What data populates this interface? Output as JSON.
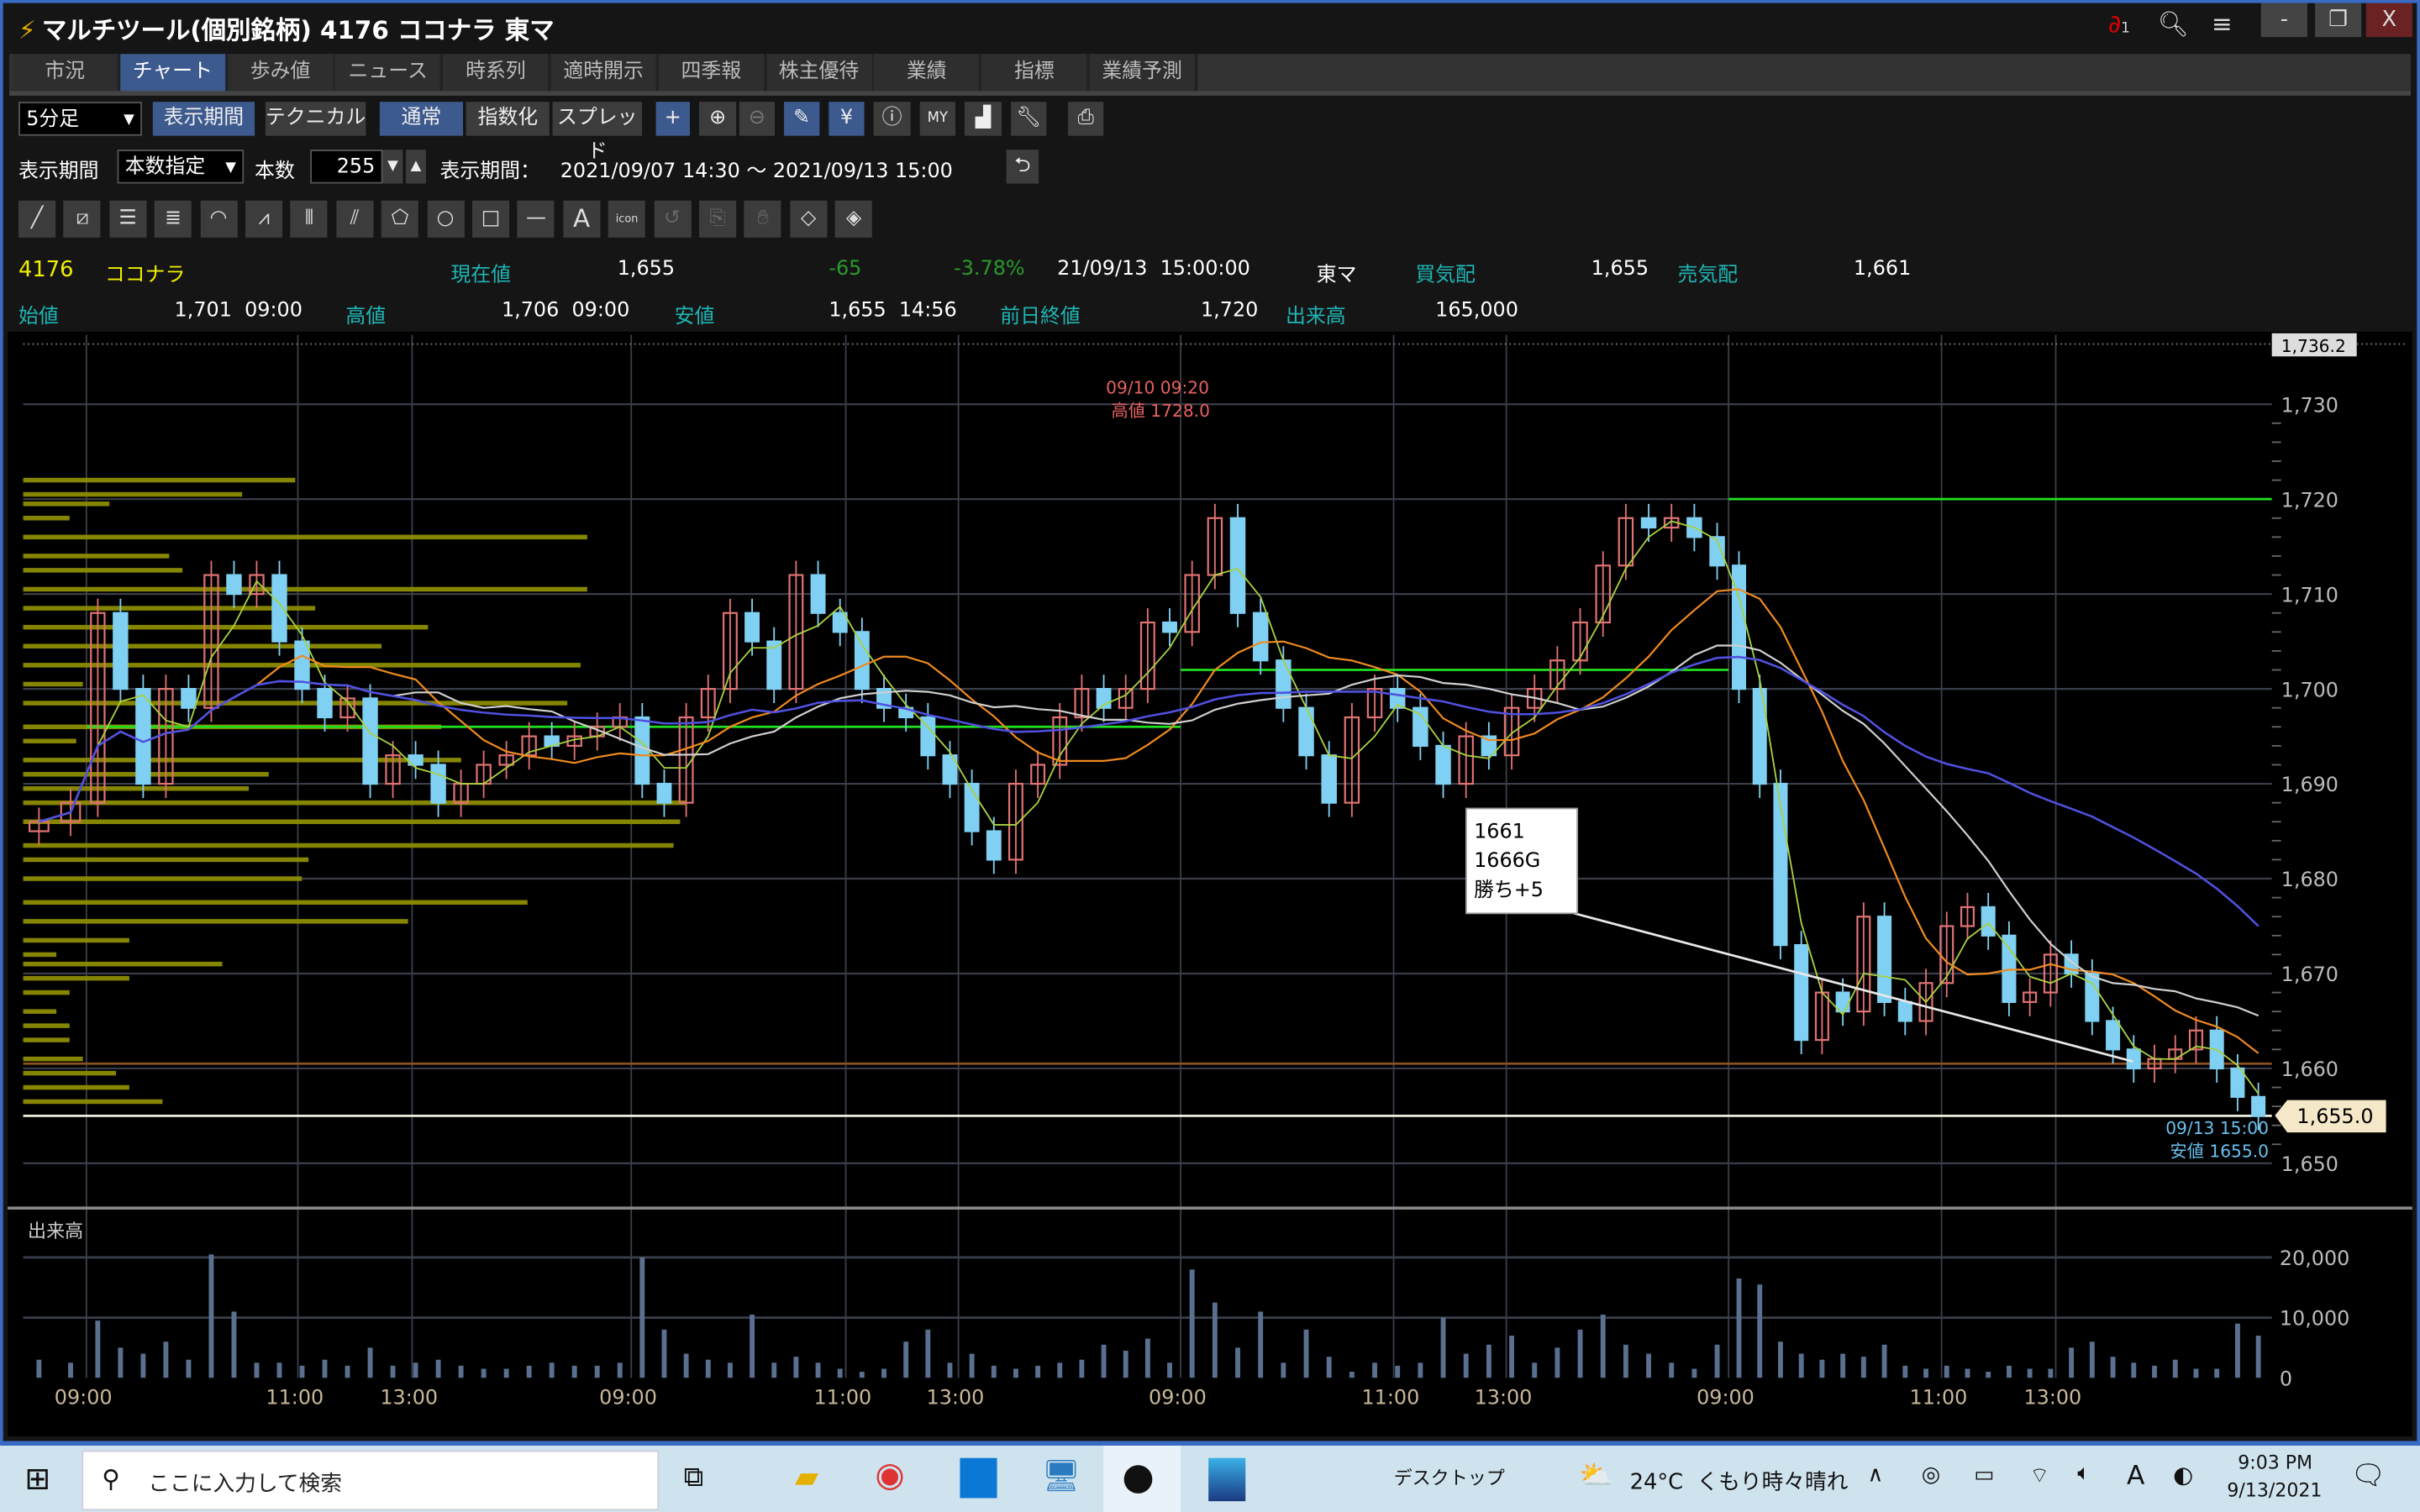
{
  "window": {
    "title": "マルチツール(個別銘柄) 4176 ココナラ 東マ",
    "link_badge": "1",
    "controls": {
      "minimize": "-",
      "restore": "❐",
      "close": "X"
    }
  },
  "tabs": [
    {
      "label": "市況"
    },
    {
      "label": "チャート",
      "active": true
    },
    {
      "label": "歩み値"
    },
    {
      "label": "ニュース"
    },
    {
      "label": "時系列"
    },
    {
      "label": "適時開示"
    },
    {
      "label": "四季報"
    },
    {
      "label": "株主優待"
    },
    {
      "label": "業績"
    },
    {
      "label": "指標"
    },
    {
      "label": "業績予測"
    }
  ],
  "toolbar": {
    "interval": "5分足",
    "period_button": "表示期間",
    "technical_button": "テクニカル",
    "normal_button": "通常",
    "index_button": "指数化",
    "spread_button": "スプレッド",
    "icons": [
      "crosshair-icon",
      "zoom-in-icon",
      "zoom-out-icon",
      "pencil-icon",
      "yen-icon",
      "info-icon",
      "my-chart-icon",
      "area-chart-icon",
      "wrench-icon",
      "print-icon"
    ]
  },
  "period": {
    "label": "表示期間",
    "mode": "本数指定",
    "count_label": "本数",
    "count": "255",
    "range_label": "表示期間：",
    "range": "2021/09/07 14:30 ～ 2021/09/13 15:00"
  },
  "drawing_tools": [
    "line",
    "parallel",
    "horizontal-lines",
    "multi-lines",
    "arc",
    "fan",
    "vertical-lines",
    "pitchfork",
    "pentagon",
    "circle",
    "rectangle",
    "horizontal-line",
    "text",
    "stamp",
    "redo",
    "copy",
    "hand",
    "eraser",
    "eraser-all"
  ],
  "stamp_label": "icon",
  "text_tool_label": "A",
  "quote": {
    "code": "4176",
    "name": "ココナラ",
    "current_label": "現在値",
    "current": "1,655",
    "change": "-65",
    "change_pct": "-3.78%",
    "datetime": "21/09/13  15:00:00",
    "market": "東マ",
    "bid_label": "買気配",
    "bid": "1,655",
    "ask_label": "売気配",
    "ask": "1,661",
    "open_label": "始値",
    "open": "1,701  09:00",
    "high_label": "高値",
    "high": "1,706  09:00",
    "low_label": "安値",
    "low": "1,655  14:56",
    "prev_close_label": "前日終値",
    "prev_close": "1,720",
    "volume_label": "出来高",
    "volume": "165,000"
  },
  "colors": {
    "up": "#e07272",
    "down": "#7fd0f2",
    "ma_short": "#a8d040",
    "ma_mid": "#f08a20",
    "ma_long": "#5050e0",
    "ma_white": "#d0d0d0",
    "profile": "#8c8c00",
    "accent": "#3d5a8e"
  },
  "chart_data": {
    "type": "candlestick",
    "ylim": [
      1648,
      1736.2
    ],
    "y_ticks": [
      "1,730",
      "1,720",
      "1,710",
      "1,700",
      "1,690",
      "1,680",
      "1,670",
      "1,660",
      "1,650"
    ],
    "y_tick_values": [
      1730,
      1720,
      1710,
      1700,
      1690,
      1680,
      1670,
      1660,
      1650
    ],
    "top_label": "1,736.2",
    "last_price_label": "1,655.0",
    "x_ticks": [
      "09:00",
      "11:00",
      "13:00",
      "09:00",
      "11:00",
      "13:00",
      "09:00",
      "11:00",
      "13:00",
      "09:00",
      "11:00",
      "13:00"
    ],
    "grid": true,
    "sessions": [
      {
        "close": [
          1686,
          1688
        ],
        "volume": [
          3000,
          2500
        ]
      },
      {
        "close": [
          1708,
          1700,
          1690,
          1700,
          1698,
          1712,
          1710,
          1712,
          1705,
          1700,
          1697,
          1699,
          1690,
          1693,
          1692,
          1688,
          1690,
          1692,
          1693,
          1695,
          1694,
          1695,
          1696,
          1697
        ],
        "volume": [
          9500,
          5000,
          4000,
          6000,
          3000,
          20500,
          11000,
          2500,
          2500,
          2000,
          3000,
          2000,
          5000,
          2000,
          2500,
          3000,
          2000,
          1500,
          1500,
          2000,
          2500,
          2000,
          2000,
          2500
        ]
      },
      {
        "close": [
          1690,
          1688,
          1697,
          1700,
          1708,
          1705,
          1700,
          1712,
          1708,
          1706,
          1700,
          1698,
          1697,
          1693,
          1690,
          1685,
          1682,
          1690,
          1692,
          1697,
          1700,
          1698,
          1700,
          1707,
          1706
        ],
        "volume": [
          20000,
          8000,
          4000,
          3000,
          2500,
          10500,
          2500,
          3500,
          2500,
          1500,
          1000,
          1500,
          6000,
          8000,
          2500,
          4000,
          2000,
          1500,
          2000,
          2500,
          3000,
          5500,
          4500,
          6500,
          2500
        ]
      },
      {
        "close": [
          1712,
          1718,
          1708,
          1703,
          1698,
          1693,
          1688,
          1697,
          1700,
          1698,
          1694,
          1690,
          1695,
          1693,
          1698,
          1700,
          1703,
          1707,
          1713,
          1718,
          1717,
          1718,
          1716,
          1713
        ],
        "volume": [
          18000,
          12500,
          5000,
          11000,
          2500,
          8000,
          3500,
          1000,
          2500,
          2000,
          2500,
          10000,
          4000,
          5500,
          7000,
          2500,
          5000,
          8000,
          10500,
          5500,
          4000,
          2500,
          1500,
          5500
        ]
      },
      {
        "close": [
          1700,
          1690,
          1673,
          1663,
          1668,
          1666,
          1676,
          1667,
          1665,
          1669,
          1675,
          1677,
          1674,
          1667,
          1668,
          1672,
          1670,
          1665,
          1662,
          1660,
          1661,
          1662,
          1664,
          1660,
          1657,
          1655
        ],
        "volume": [
          16500,
          15500,
          6000,
          4000,
          3000,
          4000,
          3500,
          5500,
          2000,
          1500,
          2000,
          1500,
          1000,
          2000,
          1500,
          1500,
          5000,
          6000,
          3500,
          2500,
          2000,
          3000,
          1500,
          1500,
          9000,
          7000
        ]
      }
    ],
    "horizontal_lines": [
      {
        "price": 1696,
        "session_from": 1,
        "session_to": 2,
        "color": "#20e020"
      },
      {
        "price": 1702,
        "session_from": 3,
        "session_to": 3,
        "color": "#20e020"
      },
      {
        "price": 1720,
        "session_from": 4,
        "session_to": 4,
        "color": "#20e020"
      },
      {
        "price": 1660.5,
        "color": "#8a5020"
      },
      {
        "price": 1655,
        "color": "#f0f0e0"
      }
    ],
    "trendline": {
      "from_price": 1680.5,
      "to_price": 1661
    },
    "volume_profile": [
      {
        "price": 1722,
        "vol": 41
      },
      {
        "price": 1720.5,
        "vol": 33
      },
      {
        "price": 1719.5,
        "vol": 13
      },
      {
        "price": 1718,
        "vol": 7
      },
      {
        "price": 1716,
        "vol": 85
      },
      {
        "price": 1714,
        "vol": 22
      },
      {
        "price": 1712.5,
        "vol": 24
      },
      {
        "price": 1710.5,
        "vol": 85
      },
      {
        "price": 1708.5,
        "vol": 44
      },
      {
        "price": 1706.5,
        "vol": 61
      },
      {
        "price": 1704.5,
        "vol": 54
      },
      {
        "price": 1702.5,
        "vol": 84
      },
      {
        "price": 1700.5,
        "vol": 9
      },
      {
        "price": 1698.5,
        "vol": 82
      },
      {
        "price": 1696,
        "vol": 63
      },
      {
        "price": 1694.5,
        "vol": 8
      },
      {
        "price": 1692.5,
        "vol": 66
      },
      {
        "price": 1691,
        "vol": 37
      },
      {
        "price": 1689.5,
        "vol": 34
      },
      {
        "price": 1688,
        "vol": 100
      },
      {
        "price": 1686,
        "vol": 99
      },
      {
        "price": 1683.5,
        "vol": 98
      },
      {
        "price": 1682,
        "vol": 43
      },
      {
        "price": 1680,
        "vol": 42
      },
      {
        "price": 1677.5,
        "vol": 76
      },
      {
        "price": 1675.5,
        "vol": 58
      },
      {
        "price": 1673.5,
        "vol": 16
      },
      {
        "price": 1672,
        "vol": 5
      },
      {
        "price": 1671,
        "vol": 30
      },
      {
        "price": 1669.5,
        "vol": 16
      },
      {
        "price": 1668,
        "vol": 7
      },
      {
        "price": 1666,
        "vol": 5
      },
      {
        "price": 1664.5,
        "vol": 7
      },
      {
        "price": 1663,
        "vol": 7
      },
      {
        "price": 1661,
        "vol": 9
      },
      {
        "price": 1659.5,
        "vol": 14
      },
      {
        "price": 1658,
        "vol": 16
      },
      {
        "price": 1656.5,
        "vol": 21
      }
    ],
    "annotations": {
      "high_time": "09/10 09:20",
      "high_text": "高値 1728.0",
      "low_time": "09/13 15:00",
      "low_text": "安値 1655.0"
    },
    "tooltip": [
      "1661",
      "1666G",
      "勝ち+5"
    ],
    "volume_panel": {
      "title": "出来高",
      "y_ticks": [
        "20,000",
        "10,000",
        "0"
      ],
      "y_tick_values": [
        20000,
        10000,
        0
      ]
    }
  },
  "taskbar": {
    "search_placeholder": "ここに入力して検索",
    "desktop_label": "デスクトップ",
    "weather": "24°C  くもり時々晴れ",
    "ime": "A",
    "time": "9:03 PM",
    "date": "9/13/2021"
  }
}
